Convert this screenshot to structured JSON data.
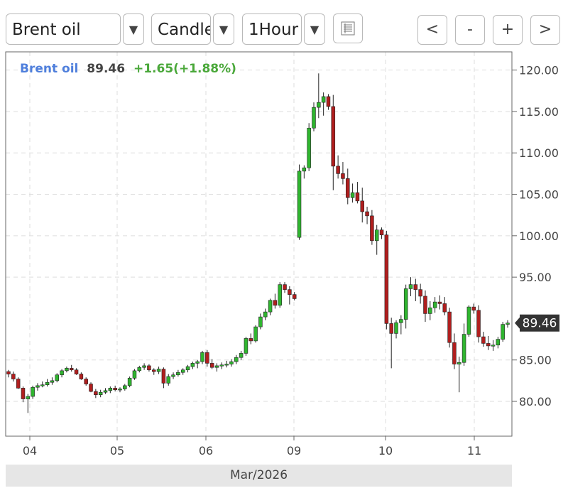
{
  "toolbar": {
    "symbol": "Brent oil",
    "chart_type": "Candle",
    "interval": "1Hour",
    "dropdown_arrow": "▼",
    "nav": {
      "prev": "<",
      "zoom_out": "-",
      "zoom_in": "+",
      "next": ">"
    },
    "icons": {
      "list": "list-icon",
      "arrow": "chevron-down-icon"
    }
  },
  "legend": {
    "name": "Brent oil",
    "price": "89.46",
    "change": "+1.65(+1.88%)"
  },
  "colors": {
    "up": "#2fb52f",
    "down": "#b01e1e",
    "name": "#4f7fdc",
    "change": "#4aa83a",
    "grid": "#dedede",
    "frame": "#666666"
  },
  "chart_data": {
    "type": "candlestick",
    "x_label": "Mar/2026",
    "x_ticks": [
      "04",
      "05",
      "06",
      "09",
      "10",
      "11"
    ],
    "y_ticks": [
      "120.00",
      "115.00",
      "110.00",
      "105.00",
      "100.00",
      "95.00",
      "85.00",
      "80.00"
    ],
    "ylim": [
      75.8,
      122.2
    ],
    "last_price": "89.46",
    "grid": true,
    "candles": [
      [
        83.6,
        83.8,
        82.9,
        83.3
      ],
      [
        83.3,
        83.6,
        82.4,
        82.7
      ],
      [
        82.7,
        82.9,
        81.5,
        81.6
      ],
      [
        81.6,
        81.8,
        79.9,
        80.3
      ],
      [
        80.3,
        80.9,
        78.6,
        80.6
      ],
      [
        80.6,
        81.9,
        80.3,
        81.7
      ],
      [
        81.7,
        82.2,
        81.3,
        81.9
      ],
      [
        81.9,
        82.4,
        81.7,
        82.0
      ],
      [
        82.0,
        82.7,
        81.8,
        82.3
      ],
      [
        82.3,
        82.9,
        82.0,
        82.5
      ],
      [
        82.5,
        83.4,
        82.3,
        83.2
      ],
      [
        83.2,
        83.9,
        82.9,
        83.7
      ],
      [
        83.7,
        84.2,
        83.5,
        84.0
      ],
      [
        84.0,
        84.4,
        83.6,
        83.8
      ],
      [
        83.8,
        84.0,
        83.2,
        83.3
      ],
      [
        83.3,
        83.5,
        82.6,
        82.7
      ],
      [
        82.7,
        82.9,
        81.9,
        82.1
      ],
      [
        82.1,
        82.3,
        81.1,
        81.2
      ],
      [
        81.2,
        81.5,
        80.4,
        80.8
      ],
      [
        80.8,
        81.4,
        80.5,
        81.1
      ],
      [
        81.1,
        81.6,
        80.9,
        81.3
      ],
      [
        81.3,
        81.8,
        81.0,
        81.6
      ],
      [
        81.6,
        81.9,
        81.2,
        81.4
      ],
      [
        81.4,
        81.7,
        81.1,
        81.5
      ],
      [
        81.5,
        82.1,
        81.3,
        81.9
      ],
      [
        81.9,
        83.0,
        81.7,
        82.8
      ],
      [
        82.8,
        83.9,
        82.6,
        83.7
      ],
      [
        83.7,
        84.3,
        83.5,
        84.1
      ],
      [
        84.1,
        84.6,
        83.8,
        84.3
      ],
      [
        84.3,
        84.5,
        83.6,
        83.8
      ],
      [
        83.8,
        84.0,
        83.2,
        83.6
      ],
      [
        83.6,
        84.2,
        83.3,
        83.9
      ],
      [
        83.9,
        84.1,
        81.6,
        82.2
      ],
      [
        82.2,
        83.3,
        81.9,
        83.0
      ],
      [
        83.0,
        83.5,
        82.7,
        83.2
      ],
      [
        83.2,
        83.8,
        83.0,
        83.5
      ],
      [
        83.5,
        84.0,
        83.2,
        83.8
      ],
      [
        83.8,
        84.4,
        83.5,
        84.2
      ],
      [
        84.2,
        84.8,
        83.9,
        84.6
      ],
      [
        84.6,
        85.0,
        84.0,
        84.8
      ],
      [
        84.8,
        86.1,
        84.5,
        85.9
      ],
      [
        85.9,
        86.2,
        84.2,
        84.6
      ],
      [
        84.6,
        85.1,
        83.9,
        84.1
      ],
      [
        84.1,
        84.6,
        83.6,
        84.3
      ],
      [
        84.3,
        84.7,
        83.9,
        84.4
      ],
      [
        84.4,
        84.9,
        84.1,
        84.5
      ],
      [
        84.5,
        85.1,
        84.2,
        84.8
      ],
      [
        84.8,
        85.6,
        84.5,
        85.3
      ],
      [
        85.3,
        86.1,
        85.0,
        85.8
      ],
      [
        85.8,
        87.8,
        85.5,
        87.6
      ],
      [
        87.6,
        88.2,
        86.9,
        87.3
      ],
      [
        87.3,
        89.2,
        87.1,
        89.0
      ],
      [
        89.0,
        90.6,
        88.7,
        90.2
      ],
      [
        90.2,
        91.2,
        89.8,
        90.8
      ],
      [
        90.8,
        92.4,
        90.4,
        92.2
      ],
      [
        92.2,
        93.0,
        91.2,
        91.6
      ],
      [
        91.6,
        94.4,
        91.3,
        94.1
      ],
      [
        94.1,
        94.4,
        93.1,
        93.5
      ],
      [
        93.5,
        93.9,
        91.7,
        92.9
      ],
      [
        92.9,
        93.2,
        92.2,
        92.4
      ],
      [
        99.8,
        108.6,
        99.5,
        107.8
      ],
      [
        107.8,
        108.5,
        106.9,
        108.2
      ],
      [
        108.2,
        113.6,
        107.8,
        113.0
      ],
      [
        113.0,
        116.1,
        112.6,
        115.5
      ],
      [
        115.5,
        119.6,
        114.2,
        116.1
      ],
      [
        116.1,
        117.3,
        114.5,
        116.8
      ],
      [
        116.8,
        117.1,
        115.2,
        115.6
      ],
      [
        115.6,
        117.0,
        105.5,
        108.4
      ],
      [
        108.4,
        109.7,
        106.9,
        107.5
      ],
      [
        107.5,
        108.9,
        106.2,
        106.9
      ],
      [
        106.9,
        108.1,
        103.8,
        104.6
      ],
      [
        104.6,
        106.3,
        104.0,
        105.2
      ],
      [
        105.2,
        106.5,
        103.9,
        104.2
      ],
      [
        104.2,
        105.8,
        101.6,
        102.9
      ],
      [
        102.9,
        103.5,
        101.4,
        102.4
      ],
      [
        102.4,
        103.1,
        98.9,
        99.4
      ],
      [
        99.4,
        101.3,
        97.7,
        100.7
      ],
      [
        100.7,
        101.0,
        99.6,
        100.1
      ],
      [
        100.1,
        100.6,
        88.7,
        89.4
      ],
      [
        89.4,
        90.1,
        84.0,
        88.2
      ],
      [
        88.2,
        89.8,
        87.6,
        89.5
      ],
      [
        89.5,
        90.4,
        88.1,
        89.9
      ],
      [
        89.9,
        94.1,
        88.8,
        93.6
      ],
      [
        93.6,
        95.0,
        92.7,
        94.1
      ],
      [
        94.1,
        94.8,
        92.1,
        93.5
      ],
      [
        93.5,
        94.2,
        91.8,
        92.7
      ],
      [
        92.7,
        93.4,
        89.6,
        90.6
      ],
      [
        90.6,
        92.1,
        89.8,
        91.3
      ],
      [
        91.3,
        92.6,
        90.7,
        92.0
      ],
      [
        92.0,
        92.8,
        91.1,
        91.8
      ],
      [
        91.8,
        92.6,
        90.4,
        90.8
      ],
      [
        90.8,
        91.3,
        86.5,
        87.1
      ],
      [
        87.1,
        88.2,
        83.9,
        84.5
      ],
      [
        84.5,
        85.4,
        81.1,
        84.7
      ],
      [
        84.7,
        89.4,
        84.3,
        88.1
      ],
      [
        88.1,
        91.6,
        87.8,
        91.4
      ],
      [
        91.4,
        91.8,
        90.6,
        91.0
      ],
      [
        91.0,
        91.6,
        87.1,
        87.8
      ],
      [
        87.8,
        88.4,
        86.6,
        87.0
      ],
      [
        87.0,
        87.9,
        86.2,
        86.7
      ],
      [
        86.7,
        87.4,
        86.1,
        86.8
      ],
      [
        86.8,
        87.8,
        86.4,
        87.5
      ],
      [
        87.5,
        89.6,
        87.2,
        89.3
      ],
      [
        89.3,
        89.8,
        88.9,
        89.46
      ]
    ]
  }
}
